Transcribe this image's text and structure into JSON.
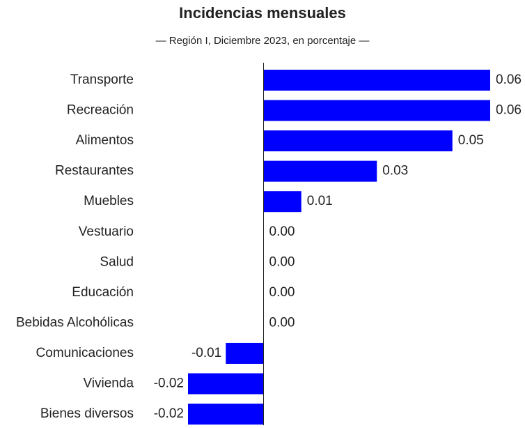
{
  "chart_data": {
    "type": "barh",
    "title": "Incidencias mensuales",
    "subtitle": "— Región I, Diciembre 2023, en porcentaje  —",
    "categories": [
      "Transporte",
      "Recreación",
      "Alimentos",
      "Restaurantes",
      "Muebles",
      "Vestuario",
      "Salud",
      "Educación",
      "Bebidas Alcohólicas",
      "Comunicaciones",
      "Vivienda",
      "Bienes diversos"
    ],
    "values": [
      0.06,
      0.06,
      0.05,
      0.03,
      0.01,
      0,
      0,
      0,
      0,
      -0.01,
      -0.02,
      -0.02
    ],
    "value_labels": [
      "0.06",
      "0.06",
      "0.05",
      "0.03",
      "0.01",
      "0.00",
      "0.00",
      "0.00",
      "0.00",
      "-0.01",
      "-0.02",
      "-0.02"
    ],
    "color": "#0000ff",
    "xlim": [
      -0.02,
      0.06
    ]
  }
}
